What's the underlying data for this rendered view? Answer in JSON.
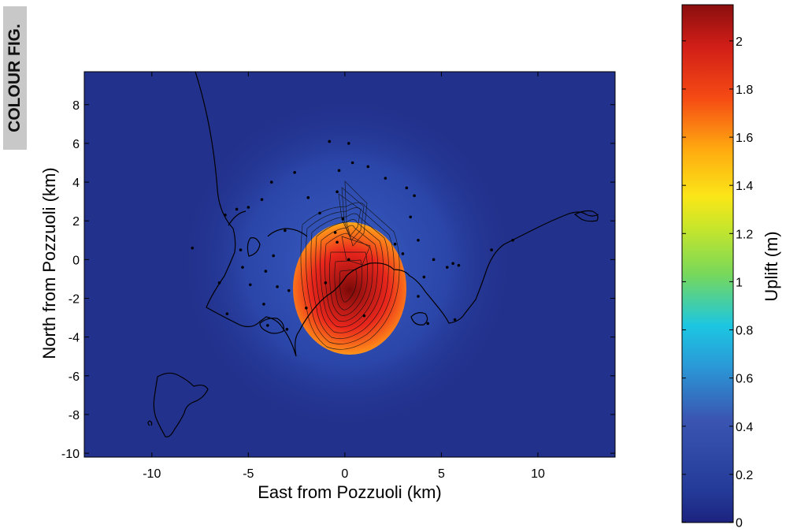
{
  "badge": {
    "text": "COLOUR FIG."
  },
  "chart_data": {
    "type": "heatmap",
    "title": "",
    "xlabel": "East from Pozzuoli (km)",
    "ylabel": "North from Pozzuoli (km)",
    "xlim": [
      -13.5,
      14
    ],
    "ylim": [
      -10.2,
      9.7
    ],
    "xticks": [
      -10,
      -5,
      0,
      5,
      10
    ],
    "xtick_labels": [
      "-10",
      "-5",
      "0",
      "5",
      "10"
    ],
    "yticks": [
      8,
      6,
      4,
      2,
      0,
      -2,
      -4,
      -6,
      -8,
      -10
    ],
    "ytick_labels": [
      "8",
      "6",
      "4",
      "2",
      "0",
      "-2",
      "-4",
      "-6",
      "-8",
      "-10"
    ],
    "grid": false,
    "field": {
      "quantity": "uplift",
      "max_value": 2.15,
      "max_location": [
        0.3,
        -1.6
      ]
    },
    "colorbar": {
      "label": "Uplift (m)",
      "range": [
        0,
        2.15
      ],
      "ticks": [
        0,
        0.2,
        0.4,
        0.6,
        0.8,
        1,
        1.2,
        1.4,
        1.6,
        1.8,
        2
      ],
      "tick_labels": [
        "0",
        "0.2",
        "0.4",
        "0.6",
        "0.8",
        "1",
        "1.2",
        "1.4",
        "1.6",
        "1.8",
        "2"
      ],
      "colormap": "jet"
    },
    "stations": [
      [
        -6.2,
        2.3
      ],
      [
        -5.6,
        2.6
      ],
      [
        -5.0,
        2.7
      ],
      [
        -4.3,
        3.1
      ],
      [
        -3.8,
        4.0
      ],
      [
        -2.6,
        4.5
      ],
      [
        -1.9,
        3.2
      ],
      [
        -1.3,
        2.4
      ],
      [
        -0.4,
        3.5
      ],
      [
        -0.3,
        4.6
      ],
      [
        -0.8,
        6.1
      ],
      [
        0.2,
        6.0
      ],
      [
        0.4,
        5.0
      ],
      [
        1.2,
        4.8
      ],
      [
        2.1,
        4.2
      ],
      [
        3.2,
        3.7
      ],
      [
        3.6,
        3.3
      ],
      [
        3.4,
        2.2
      ],
      [
        3.8,
        1.0
      ],
      [
        4.6,
        0.0
      ],
      [
        5.3,
        -0.4
      ],
      [
        5.6,
        -0.2
      ],
      [
        5.9,
        -0.3
      ],
      [
        4.1,
        -0.9
      ],
      [
        3.0,
        0.3
      ],
      [
        2.6,
        0.8
      ],
      [
        -0.5,
        1.4
      ],
      [
        -0.1,
        2.1
      ],
      [
        -0.4,
        0.9
      ],
      [
        0.2,
        0.0
      ],
      [
        -3.1,
        1.5
      ],
      [
        -3.7,
        0.2
      ],
      [
        -5.4,
        0.5
      ],
      [
        -5.3,
        -0.4
      ],
      [
        -4.1,
        -0.6
      ],
      [
        -4.9,
        -1.3
      ],
      [
        -3.5,
        -1.4
      ],
      [
        -2.9,
        -1.6
      ],
      [
        -4.2,
        -2.3
      ],
      [
        -4.0,
        -3.4
      ],
      [
        -2.0,
        -2.5
      ],
      [
        -6.5,
        -1.2
      ],
      [
        -6.1,
        -2.8
      ],
      [
        -3.0,
        -3.6
      ],
      [
        4.3,
        -3.3
      ],
      [
        5.7,
        -3.1
      ],
      [
        7.6,
        0.5
      ],
      [
        8.7,
        1.0
      ],
      [
        -1.0,
        -1.2
      ],
      [
        1.0,
        -2.9
      ],
      [
        3.8,
        -1.9
      ],
      [
        -7.9,
        0.6
      ]
    ]
  }
}
